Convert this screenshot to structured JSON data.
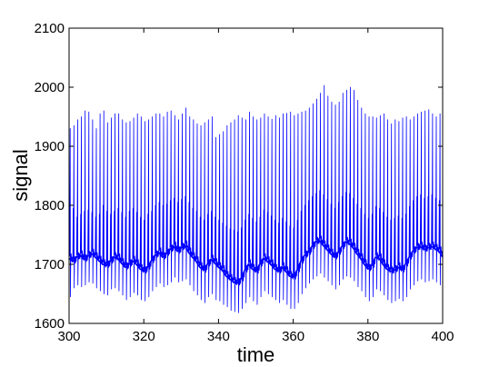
{
  "chart_data": {
    "type": "line",
    "title": "",
    "xlabel": "time",
    "ylabel": "signal",
    "xlim": [
      300,
      400
    ],
    "ylim": [
      1600,
      2100
    ],
    "x_ticks": [
      300,
      320,
      340,
      360,
      380,
      400
    ],
    "y_ticks": [
      1600,
      1700,
      1800,
      1900,
      2000,
      2100
    ],
    "grid": false,
    "legend": "none",
    "line_color": "#0000ff",
    "series": [
      {
        "x": [
          300,
          301,
          302,
          303,
          304,
          305,
          306,
          307,
          308,
          309,
          310,
          311,
          312,
          313,
          314,
          315,
          316,
          317,
          318,
          319,
          320,
          321,
          322,
          323,
          324,
          325,
          326,
          327,
          328,
          329,
          330,
          331,
          332,
          333,
          334,
          335,
          336,
          337,
          338,
          339,
          340,
          341,
          342,
          343,
          344,
          345,
          346,
          347,
          348,
          349,
          350,
          351,
          352,
          353,
          354,
          355,
          356,
          357,
          358,
          359,
          360,
          361,
          362,
          363,
          364,
          365,
          366,
          367,
          368,
          369,
          370,
          371,
          372,
          373,
          374,
          375,
          376,
          377,
          378,
          379,
          380,
          381,
          382,
          383,
          384,
          385,
          386,
          387,
          388,
          389,
          390,
          391,
          392,
          393,
          394,
          395,
          396,
          397,
          398,
          399,
          400
        ],
        "baseline": [
          1710,
          1705,
          1712,
          1715,
          1708,
          1714,
          1718,
          1712,
          1706,
          1700,
          1698,
          1705,
          1712,
          1710,
          1702,
          1695,
          1700,
          1706,
          1700,
          1692,
          1688,
          1695,
          1706,
          1715,
          1720,
          1712,
          1718,
          1725,
          1730,
          1722,
          1728,
          1732,
          1720,
          1712,
          1705,
          1695,
          1690,
          1700,
          1708,
          1702,
          1695,
          1690,
          1680,
          1675,
          1670,
          1668,
          1675,
          1690,
          1700,
          1692,
          1688,
          1700,
          1710,
          1705,
          1700,
          1692,
          1688,
          1695,
          1688,
          1680,
          1678,
          1690,
          1705,
          1715,
          1720,
          1730,
          1738,
          1740,
          1732,
          1725,
          1718,
          1712,
          1720,
          1730,
          1738,
          1735,
          1728,
          1718,
          1710,
          1700,
          1692,
          1698,
          1712,
          1710,
          1700,
          1692,
          1688,
          1690,
          1695,
          1690,
          1700,
          1712,
          1722,
          1728,
          1730,
          1725,
          1728,
          1730,
          1726,
          1722,
          1712
        ],
        "peak": [
          1930,
          1935,
          1945,
          1950,
          1960,
          1958,
          1945,
          1930,
          1955,
          1960,
          1940,
          1948,
          1955,
          1955,
          1945,
          1940,
          1942,
          1948,
          1955,
          1950,
          1942,
          1945,
          1950,
          1955,
          1955,
          1950,
          1958,
          1960,
          1952,
          1945,
          1955,
          1965,
          1950,
          1945,
          1938,
          1935,
          1940,
          1945,
          1950,
          1915,
          1920,
          1925,
          1935,
          1940,
          1945,
          1952,
          1948,
          1945,
          1958,
          1950,
          1945,
          1948,
          1955,
          1950,
          1946,
          1952,
          1948,
          1955,
          1956,
          1958,
          1952,
          1955,
          1958,
          1960,
          1965,
          1972,
          1980,
          1990,
          2003,
          1985,
          1975,
          1970,
          1975,
          1990,
          1995,
          2000,
          1995,
          1978,
          1965,
          1955,
          1950,
          1950,
          1948,
          1952,
          1955,
          1945,
          1938,
          1945,
          1942,
          1948,
          1950,
          1945,
          1950,
          1955,
          1958,
          1960,
          1962,
          1955,
          1950,
          1955,
          1960
        ],
        "trough": [
          1645,
          1660,
          1665,
          1662,
          1665,
          1670,
          1668,
          1660,
          1655,
          1650,
          1648,
          1658,
          1660,
          1655,
          1648,
          1640,
          1645,
          1652,
          1648,
          1640,
          1638,
          1645,
          1655,
          1662,
          1668,
          1662,
          1665,
          1670,
          1678,
          1670,
          1672,
          1675,
          1665,
          1655,
          1648,
          1640,
          1635,
          1645,
          1650,
          1640,
          1638,
          1632,
          1628,
          1622,
          1620,
          1618,
          1625,
          1635,
          1645,
          1638,
          1632,
          1645,
          1655,
          1650,
          1645,
          1640,
          1635,
          1640,
          1632,
          1625,
          1625,
          1635,
          1650,
          1660,
          1668,
          1675,
          1680,
          1685,
          1678,
          1672,
          1665,
          1658,
          1665,
          1675,
          1680,
          1678,
          1672,
          1662,
          1655,
          1645,
          1638,
          1645,
          1658,
          1655,
          1648,
          1640,
          1635,
          1638,
          1642,
          1638,
          1645,
          1658,
          1665,
          1672,
          1675,
          1670,
          1672,
          1675,
          1670,
          1665,
          1660
        ],
        "mid": [
          1790,
          1795,
          1780,
          1785,
          1790,
          1792,
          1788,
          1780,
          1785,
          1800,
          1790,
          1785,
          1790,
          1795,
          1788,
          1780,
          1790,
          1795,
          1788,
          1780,
          1775,
          1785,
          1790,
          1800,
          1805,
          1800,
          1802,
          1808,
          1812,
          1805,
          1810,
          1815,
          1805,
          1795,
          1790,
          1780,
          1775,
          1785,
          1790,
          1780,
          1775,
          1770,
          1765,
          1760,
          1758,
          1755,
          1762,
          1775,
          1785,
          1778,
          1772,
          1780,
          1792,
          1788,
          1782,
          1775,
          1770,
          1778,
          1772,
          1765,
          1762,
          1775,
          1790,
          1800,
          1808,
          1815,
          1820,
          1825,
          1818,
          1810,
          1802,
          1795,
          1805,
          1815,
          1822,
          1820,
          1812,
          1802,
          1795,
          1785,
          1778,
          1785,
          1798,
          1795,
          1788,
          1780,
          1775,
          1778,
          1782,
          1778,
          1785,
          1798,
          1808,
          1815,
          1818,
          1812,
          1815,
          1818,
          1812,
          1808,
          1800
        ]
      }
    ]
  }
}
